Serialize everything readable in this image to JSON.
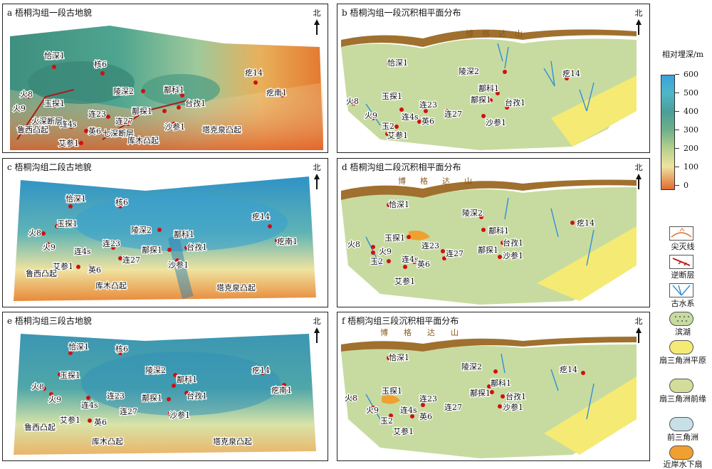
{
  "panels": {
    "a": {
      "title": "a 梧桐沟组一段古地貌",
      "north": "北"
    },
    "b": {
      "title": "b 梧桐沟组一段沉积相平面分布",
      "north": "北"
    },
    "c": {
      "title": "c 梧桐沟组二段古地貌",
      "north": "北"
    },
    "d": {
      "title": "d 梧桐沟组二段沉积相平面分布",
      "north": "北"
    },
    "e": {
      "title": "e 梧桐沟组三段古地貌",
      "north": "北"
    },
    "f": {
      "title": "f 梧桐沟组三段沉积相平面分布",
      "north": "北"
    }
  },
  "wells": {
    "qiashen1": "恰深1",
    "he6": "核6",
    "lingshen2": "陵深2",
    "duke1": "鄯科1",
    "taiqin1": "台孜1",
    "shashen1": "沙参1",
    "dutan1": "鄯探1",
    "lian23": "连23",
    "lian27": "连27",
    "ying6": "英6",
    "lian4s": "连4s",
    "yutan1": "玉探1",
    "huo8": "火8",
    "huo9": "火9",
    "ai_can1": "艾参1",
    "yu2": "玉2",
    "ji14": "疙14",
    "jinan1": "疙南1"
  },
  "features": {
    "luxi": "鲁西凸起",
    "kumu": "库木凸起",
    "takequan": "塔克泉凸起",
    "huoshen_fault": "火深断层",
    "qishen_fault": "七深断层",
    "boge": "博格达山"
  },
  "legend": {
    "depth_title": "相对埋深/m",
    "ticks": [
      "600",
      "500",
      "400",
      "300",
      "200",
      "100",
      "0"
    ],
    "items": [
      {
        "label": "尖灭线",
        "key": "pinch"
      },
      {
        "label": "逆断层",
        "key": "fault"
      },
      {
        "label": "古水系",
        "key": "river"
      },
      {
        "label": "滨湖",
        "key": "shore"
      },
      {
        "label": "扇三角洲平原",
        "key": "plain"
      },
      {
        "label": "扇三角洲前缘",
        "key": "front"
      },
      {
        "label": "前三角洲",
        "key": "pro"
      },
      {
        "label": "近岸水下扇",
        "key": "fan"
      }
    ]
  },
  "colors": {
    "deep": "#3aa3d9",
    "mid": "#4a9e98",
    "shallow": "#b6cf8c",
    "high": "#e06b2f",
    "lake": "#c7dba0",
    "plain_y": "#f5ea74",
    "fan": "#f0a030",
    "mountain": "#a0702e",
    "river": "#2f8fd8"
  }
}
